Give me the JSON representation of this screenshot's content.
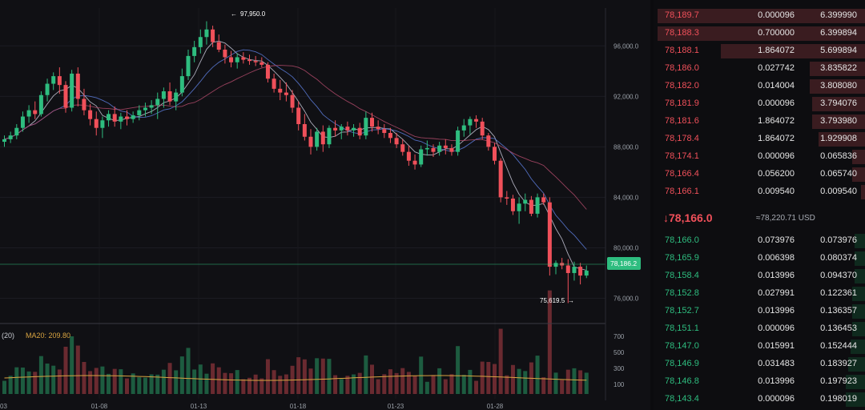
{
  "chart": {
    "high_label": "97,950.0",
    "low_label": "75,619.5",
    "current_price_tag": "78,186.2",
    "y_ticks": [
      "96,000.0",
      "92,000.0",
      "88,000.0",
      "84,000.0",
      "80,000.0",
      "76,000.0"
    ],
    "x_ticks": [
      "03",
      "01-08",
      "01-13",
      "01-18",
      "01-23",
      "01-28"
    ],
    "volume_header_left": "(20)",
    "volume_header_ma": "MA20: 209.80",
    "volume_y_ticks": [
      "700",
      "500",
      "300",
      "100"
    ],
    "colors": {
      "up": "#2ebd7f",
      "down": "#f0505a",
      "ma_a": "#5c7cdb",
      "ma_b": "#b04a6a",
      "ma_c": "#c8c8d8",
      "vol_ma": "#d9a441"
    }
  },
  "chart_data": {
    "type": "candlestick",
    "x_axis": "date",
    "y_range": [
      74000,
      99000
    ],
    "candles": [
      [
        88400,
        88900,
        88000,
        88600
      ],
      [
        88600,
        89200,
        88300,
        88900
      ],
      [
        88900,
        89800,
        88600,
        89500
      ],
      [
        89500,
        90800,
        89200,
        90400
      ],
      [
        90400,
        91300,
        89900,
        90900
      ],
      [
        90900,
        91600,
        90200,
        90600
      ],
      [
        90600,
        92400,
        90400,
        92100
      ],
      [
        92100,
        93400,
        91600,
        93000
      ],
      [
        93000,
        93900,
        92500,
        93600
      ],
      [
        93600,
        94300,
        92200,
        92900
      ],
      [
        92900,
        93200,
        90700,
        91100
      ],
      [
        91100,
        94100,
        90800,
        93800
      ],
      [
        93800,
        94300,
        91200,
        91800
      ],
      [
        91800,
        92600,
        90500,
        90900
      ],
      [
        90900,
        91400,
        89700,
        90200
      ],
      [
        90200,
        90800,
        88900,
        89500
      ],
      [
        89500,
        90400,
        88700,
        90100
      ],
      [
        90100,
        90900,
        89600,
        90600
      ],
      [
        90600,
        91200,
        89600,
        90000
      ],
      [
        90000,
        90700,
        89400,
        90400
      ],
      [
        90400,
        90900,
        89700,
        90200
      ],
      [
        90200,
        90800,
        89900,
        90500
      ],
      [
        90500,
        91300,
        90100,
        90900
      ],
      [
        90900,
        91500,
        90400,
        91100
      ],
      [
        91100,
        91700,
        90600,
        91300
      ],
      [
        91300,
        92300,
        90200,
        91800
      ],
      [
        91800,
        92700,
        91100,
        92400
      ],
      [
        92400,
        93100,
        91300,
        91600
      ],
      [
        91600,
        92600,
        90900,
        92300
      ],
      [
        92300,
        94200,
        92000,
        93600
      ],
      [
        93600,
        95700,
        93300,
        95200
      ],
      [
        95200,
        96400,
        94700,
        95900
      ],
      [
        95900,
        97300,
        95400,
        96700
      ],
      [
        96700,
        97950,
        96100,
        97300
      ],
      [
        97300,
        97600,
        95900,
        96300
      ],
      [
        96300,
        96900,
        95500,
        95700
      ],
      [
        95700,
        96100,
        94600,
        95100
      ],
      [
        95100,
        95600,
        94300,
        94700
      ],
      [
        94700,
        95400,
        94200,
        95100
      ],
      [
        95100,
        95500,
        94600,
        94900
      ],
      [
        94900,
        95300,
        94500,
        94800
      ],
      [
        94800,
        95200,
        94400,
        94700
      ],
      [
        94700,
        95100,
        94300,
        94500
      ],
      [
        94500,
        94700,
        93100,
        93400
      ],
      [
        93400,
        93800,
        92300,
        92600
      ],
      [
        92600,
        93300,
        91700,
        92300
      ],
      [
        92300,
        93100,
        91600,
        92100
      ],
      [
        92100,
        92500,
        90700,
        91100
      ],
      [
        91100,
        91600,
        89300,
        89800
      ],
      [
        89800,
        90600,
        88500,
        88800
      ],
      [
        88800,
        89400,
        87400,
        88000
      ],
      [
        88000,
        89500,
        87700,
        89200
      ],
      [
        89200,
        89700,
        87600,
        88200
      ],
      [
        88200,
        89700,
        87900,
        89500
      ],
      [
        89500,
        90100,
        88800,
        89300
      ],
      [
        89300,
        89800,
        88600,
        89600
      ],
      [
        89600,
        90000,
        88900,
        89300
      ],
      [
        89300,
        89800,
        88800,
        89500
      ],
      [
        89500,
        89900,
        88600,
        88900
      ],
      [
        88900,
        90800,
        88600,
        90300
      ],
      [
        90300,
        90700,
        89200,
        89600
      ],
      [
        89600,
        90100,
        89000,
        89400
      ],
      [
        89400,
        89800,
        88700,
        89100
      ],
      [
        89100,
        89500,
        88300,
        88700
      ],
      [
        88700,
        89100,
        87900,
        88200
      ],
      [
        88200,
        88600,
        87300,
        87600
      ],
      [
        87600,
        88100,
        86500,
        86900
      ],
      [
        86900,
        87400,
        86200,
        86600
      ],
      [
        86600,
        88100,
        86400,
        87800
      ],
      [
        87800,
        88500,
        87300,
        87900
      ],
      [
        87900,
        88200,
        87200,
        87600
      ],
      [
        87600,
        88400,
        87300,
        88100
      ],
      [
        88100,
        88600,
        87400,
        87900
      ],
      [
        87900,
        88200,
        87300,
        87600
      ],
      [
        87600,
        89600,
        87300,
        89300
      ],
      [
        89300,
        90200,
        88800,
        89700
      ],
      [
        89700,
        90400,
        89000,
        90200
      ],
      [
        90200,
        90500,
        89500,
        90000
      ],
      [
        90000,
        90300,
        88600,
        88900
      ],
      [
        88900,
        89100,
        87700,
        88000
      ],
      [
        88000,
        88300,
        86600,
        86900
      ],
      [
        86900,
        87100,
        83600,
        84000
      ],
      [
        84000,
        84500,
        83400,
        83900
      ],
      [
        83900,
        84200,
        82600,
        82900
      ],
      [
        82900,
        84000,
        81900,
        83500
      ],
      [
        83500,
        84300,
        82900,
        83800
      ],
      [
        83800,
        84100,
        82500,
        82700
      ],
      [
        82700,
        84300,
        82400,
        84000
      ],
      [
        84000,
        84300,
        83400,
        83600
      ],
      [
        83600,
        84000,
        77800,
        78500
      ],
      [
        78500,
        79000,
        77900,
        78800
      ],
      [
        78800,
        79200,
        78300,
        78600
      ],
      [
        78600,
        79100,
        75620,
        78000
      ],
      [
        78000,
        78900,
        77400,
        78500
      ],
      [
        78500,
        78800,
        77100,
        77800
      ],
      [
        77800,
        78600,
        77600,
        78186
      ]
    ]
  },
  "orderbook": {
    "asks": [
      {
        "price": "78,189.7",
        "amount": "0.000096",
        "total": "6.399990",
        "depth": 0.98
      },
      {
        "price": "78,188.3",
        "amount": "0.700000",
        "total": "6.399894",
        "depth": 0.98
      },
      {
        "price": "78,188.1",
        "amount": "1.864072",
        "total": "5.699894",
        "depth": 0.68
      },
      {
        "price": "78,186.0",
        "amount": "0.027742",
        "total": "3.835822",
        "depth": 0.26
      },
      {
        "price": "78,182.0",
        "amount": "0.014004",
        "total": "3.808080",
        "depth": 0.26
      },
      {
        "price": "78,181.9",
        "amount": "0.000096",
        "total": "3.794076",
        "depth": 0.25
      },
      {
        "price": "78,181.6",
        "amount": "1.864072",
        "total": "3.793980",
        "depth": 0.25
      },
      {
        "price": "78,178.4",
        "amount": "1.864072",
        "total": "1.929908",
        "depth": 0.22
      },
      {
        "price": "78,174.1",
        "amount": "0.000096",
        "total": "0.065836",
        "depth": 0.06
      },
      {
        "price": "78,166.4",
        "amount": "0.056200",
        "total": "0.065740",
        "depth": 0.06
      },
      {
        "price": "78,166.1",
        "amount": "0.009540",
        "total": "0.009540",
        "depth": 0.02
      }
    ],
    "mid_price": "78,166.0",
    "mid_arrow": "↓",
    "mid_usd": "≈78,220.71 USD",
    "bids": [
      {
        "price": "78,166.0",
        "amount": "0.073976",
        "total": "0.073976",
        "depth": 0.05
      },
      {
        "price": "78,165.9",
        "amount": "0.006398",
        "total": "0.080374",
        "depth": 0.05
      },
      {
        "price": "78,158.4",
        "amount": "0.013996",
        "total": "0.094370",
        "depth": 0.05
      },
      {
        "price": "78,152.8",
        "amount": "0.027991",
        "total": "0.122361",
        "depth": 0.06
      },
      {
        "price": "78,152.7",
        "amount": "0.013996",
        "total": "0.136357",
        "depth": 0.06
      },
      {
        "price": "78,151.1",
        "amount": "0.000096",
        "total": "0.136453",
        "depth": 0.06
      },
      {
        "price": "78,147.0",
        "amount": "0.015991",
        "total": "0.152444",
        "depth": 0.07
      },
      {
        "price": "78,146.9",
        "amount": "0.031483",
        "total": "0.183927",
        "depth": 0.08
      },
      {
        "price": "78,146.8",
        "amount": "0.013996",
        "total": "0.197923",
        "depth": 0.09
      },
      {
        "price": "78,143.4",
        "amount": "0.000096",
        "total": "0.198019",
        "depth": 0.09
      }
    ]
  }
}
